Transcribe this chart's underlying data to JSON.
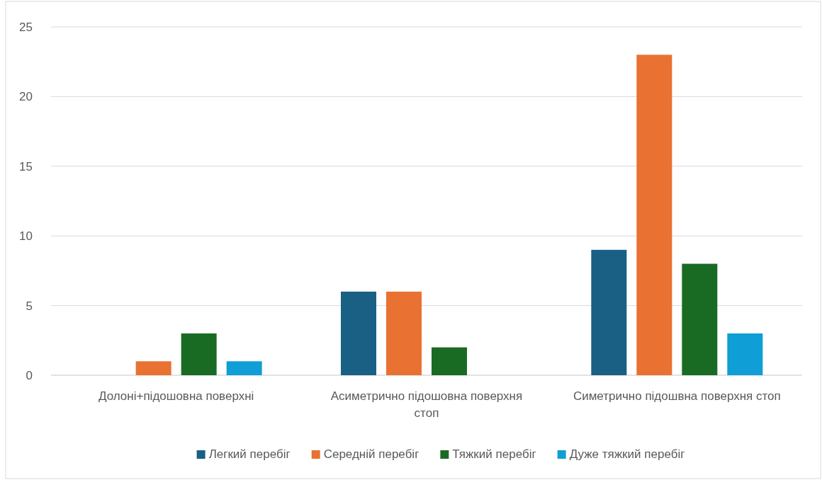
{
  "chart_data": {
    "type": "bar",
    "categories": [
      "Долоні+підошовна поверхні",
      "Асиметрично підошовна поверхня стоп",
      "Симетрично підошвна поверхня стоп"
    ],
    "series": [
      {
        "name": "Легкий перебіг",
        "color": "#1a5f84",
        "values": [
          0,
          6,
          9
        ]
      },
      {
        "name": "Середній перебіг",
        "color": "#e97132",
        "values": [
          1,
          6,
          23
        ]
      },
      {
        "name": "Тяжкий перебіг",
        "color": "#196b24",
        "values": [
          3,
          2,
          8
        ]
      },
      {
        "name": "Дуже тяжкий перебіг",
        "color": "#0f9ed5",
        "values": [
          1,
          0,
          3
        ]
      }
    ],
    "ylim": [
      0,
      25
    ],
    "yticks": [
      0,
      5,
      10,
      15,
      20,
      25
    ],
    "grid": "y",
    "legend": "bottom"
  }
}
